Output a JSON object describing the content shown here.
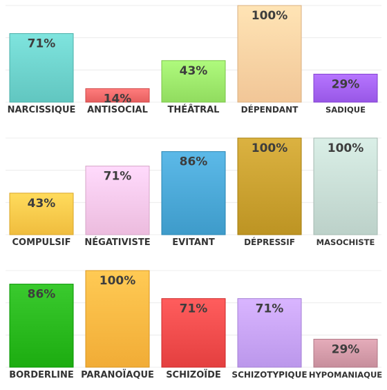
{
  "chart_data": [
    {
      "type": "bar",
      "categories": [
        "NARCISSIQUE",
        "ANTISOCIAL",
        "THÉÂTRAL",
        "DÉPENDANT",
        "SADIQUE"
      ],
      "values": [
        71,
        14,
        43,
        100,
        29
      ],
      "value_labels": [
        "71%",
        "14%",
        "43%",
        "100%",
        "29%"
      ],
      "colors": [
        "#6dd2cc",
        "#f26b6b",
        "#9de86b",
        "#fdd2a3",
        "#a463f2"
      ],
      "ylim": [
        0,
        100
      ],
      "grid": true
    },
    {
      "type": "bar",
      "categories": [
        "COMPULSIF",
        "NÉGATIVISTE",
        "EVITANT",
        "DÉPRESSIF",
        "MASOCHISTE"
      ],
      "values": [
        43,
        71,
        86,
        100,
        100
      ],
      "value_labels": [
        "43%",
        "71%",
        "86%",
        "100%",
        "100%"
      ],
      "colors": [
        "#fcc94a",
        "#f8c8ea",
        "#4aa7d6",
        "#c9a02f",
        "#c8ddd5"
      ],
      "ylim": [
        0,
        100
      ],
      "grid": true
    },
    {
      "type": "bar",
      "categories": [
        "BORDERLINE",
        "PARANOÏAQUE",
        "SCHIZOÏDE",
        "SCHIZOTYPIQUE",
        "HYPOMANIAQUE"
      ],
      "values": [
        86,
        100,
        71,
        71,
        29
      ],
      "value_labels": [
        "86%",
        "100%",
        "71%",
        "71%",
        "29%"
      ],
      "colors": [
        "#28b81c",
        "#fdb842",
        "#f04b4b",
        "#c7a3f7",
        "#d39aa8"
      ],
      "ylim": [
        0,
        100
      ],
      "grid": true
    }
  ]
}
